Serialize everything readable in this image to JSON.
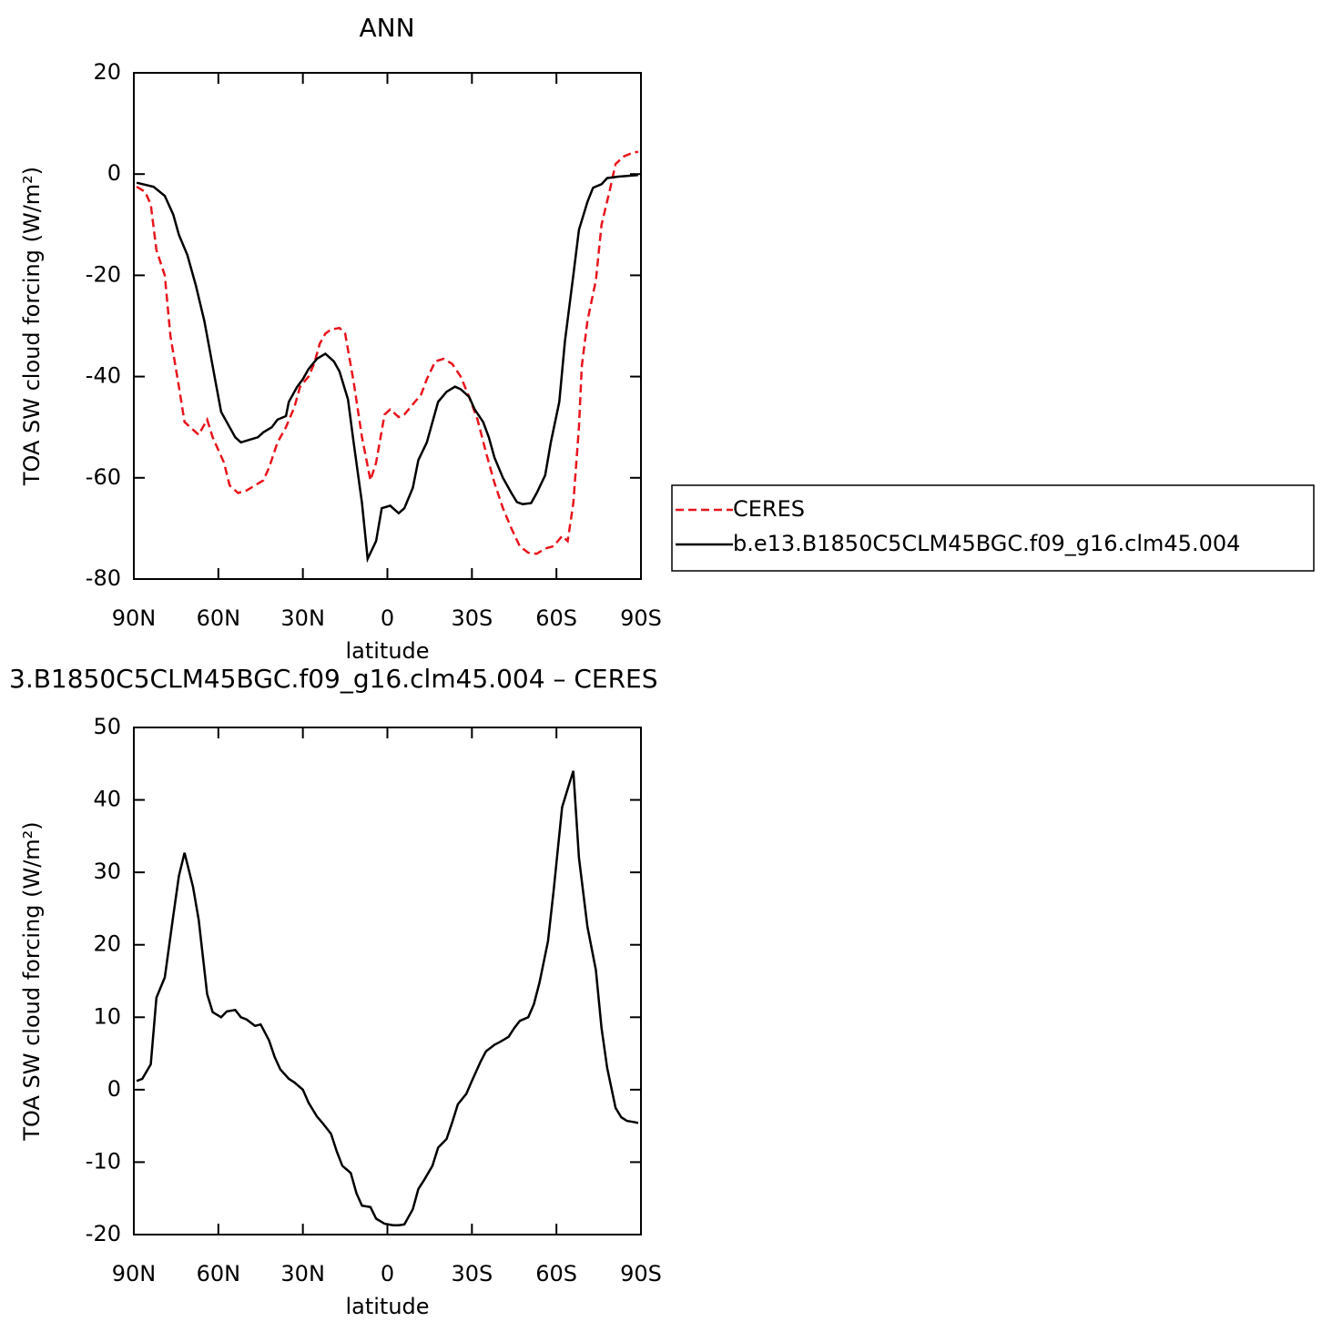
{
  "chart_data": [
    {
      "type": "line",
      "title": "ANN",
      "xlabel": "latitude",
      "ylabel": "TOA SW cloud forcing (W/m²)",
      "xlim": [
        90,
        -90
      ],
      "xticks": [
        {
          "value": 90,
          "label": "90N"
        },
        {
          "value": 60,
          "label": "60N"
        },
        {
          "value": 30,
          "label": "30N"
        },
        0,
        {
          "value": -30,
          "label": "30S"
        },
        {
          "value": -60,
          "label": "60S"
        },
        {
          "value": -90,
          "label": "90S"
        }
      ],
      "ylim": [
        -80,
        20
      ],
      "yticks": [
        20,
        0,
        -20,
        -40,
        -60,
        -80
      ],
      "legend": "right",
      "series": [
        {
          "name": "CERES",
          "color": "#e8141c",
          "dashed": true,
          "x": [
            89,
            86,
            84,
            82,
            79,
            77,
            74,
            72,
            70,
            67,
            64,
            62,
            58,
            56,
            53,
            50,
            47,
            44,
            42,
            39,
            36,
            33,
            31,
            28,
            26,
            24,
            22,
            20,
            17,
            15,
            12,
            9,
            6,
            4,
            1,
            -1,
            -4,
            -6,
            -9,
            -12,
            -14,
            -17,
            -20,
            -23,
            -26,
            -29,
            -32,
            -35,
            -38,
            -41,
            -44,
            -47,
            -50,
            -53,
            -56,
            -59,
            -62,
            -64,
            -66,
            -68,
            -69,
            -71,
            -74,
            -76,
            -79,
            -81,
            -84,
            -87,
            -89
          ],
          "values": [
            -2.5,
            -3.5,
            -6,
            -15,
            -20,
            -32,
            -42,
            -49,
            -50,
            -51.5,
            -48.5,
            -52,
            -57,
            -61.5,
            -63,
            -62.5,
            -61.5,
            -60.5,
            -58,
            -53,
            -50,
            -46,
            -42,
            -40,
            -37.5,
            -33.5,
            -31.5,
            -30.7,
            -30.4,
            -31.5,
            -41,
            -52,
            -60.5,
            -57,
            -47.5,
            -46.5,
            -48,
            -47.5,
            -45.5,
            -43.5,
            -40.5,
            -37,
            -36.5,
            -37.5,
            -40,
            -44,
            -48.5,
            -55,
            -61,
            -66,
            -70,
            -73.5,
            -74.8,
            -75,
            -74,
            -73.5,
            -71.5,
            -72.5,
            -65,
            -50,
            -38,
            -29,
            -21,
            -10,
            -3,
            2,
            3.5,
            4.2,
            4.4
          ]
        },
        {
          "name": "b.e13.B1850C5CLM45BGC.f09_g16.clm45.004",
          "color": "#000000",
          "dashed": false,
          "x": [
            89,
            83,
            79,
            76,
            74,
            71,
            68,
            65,
            63,
            61,
            59,
            56,
            54,
            52,
            49,
            46,
            44,
            41,
            39,
            36,
            35,
            32,
            30,
            28,
            25,
            22,
            19,
            17,
            14,
            12,
            9,
            7,
            4,
            2,
            -1,
            -4,
            -6,
            -9,
            -11,
            -14,
            -16,
            -18,
            -21,
            -24,
            -26,
            -29,
            -31,
            -34,
            -36,
            -38,
            -41,
            -44,
            -46,
            -48,
            -51,
            -53,
            -56,
            -58,
            -61,
            -63,
            -66,
            -68,
            -71,
            -73,
            -76,
            -78,
            -82,
            -89
          ],
          "values": [
            -1.7,
            -2.5,
            -4.3,
            -8,
            -12,
            -16,
            -22,
            -29,
            -35,
            -41,
            -47,
            -50,
            -52,
            -53,
            -52.5,
            -52,
            -51,
            -50,
            -48.5,
            -47.8,
            -45,
            -42,
            -40.5,
            -38.5,
            -36.5,
            -35.5,
            -37,
            -39,
            -44.5,
            -53,
            -65,
            -76,
            -72.5,
            -66,
            -65.5,
            -67,
            -66,
            -62,
            -56.5,
            -53,
            -49,
            -45,
            -43,
            -42,
            -42.5,
            -44,
            -46.5,
            -49,
            -52,
            -56,
            -60,
            -63,
            -64.8,
            -65.2,
            -65,
            -63,
            -59.5,
            -53,
            -45,
            -33,
            -20,
            -11,
            -5.5,
            -2.7,
            -2,
            -0.8,
            -0.5,
            -0.2
          ]
        }
      ]
    },
    {
      "type": "line",
      "title": "3.B1850C5CLM45BGC.f09_g16.clm45.004 – CERES",
      "xlabel": "latitude",
      "ylabel": "TOA SW cloud forcing (W/m²)",
      "xlim": [
        90,
        -90
      ],
      "xticks": [
        {
          "value": 90,
          "label": "90N"
        },
        {
          "value": 60,
          "label": "60N"
        },
        {
          "value": 30,
          "label": "30N"
        },
        0,
        {
          "value": -30,
          "label": "30S"
        },
        {
          "value": -60,
          "label": "60S"
        },
        {
          "value": -90,
          "label": "90S"
        }
      ],
      "ylim": [
        -20,
        50
      ],
      "yticks": [
        50,
        40,
        30,
        20,
        10,
        0,
        -10,
        -20
      ],
      "series": [
        {
          "color": "#000000",
          "dashed": false,
          "x": [
            89,
            87,
            84,
            82,
            79,
            76,
            74,
            72,
            69,
            67,
            64,
            62,
            59,
            57,
            54,
            52,
            50,
            47,
            45,
            42,
            40,
            38,
            35,
            33,
            30,
            28,
            25,
            23,
            20,
            18,
            16,
            13,
            11,
            9,
            6,
            4,
            1,
            -2,
            -4,
            -6,
            -9,
            -11,
            -13,
            -16,
            -18,
            -21,
            -23,
            -25,
            -28,
            -30,
            -33,
            -35,
            -38,
            -40,
            -43,
            -45,
            -47,
            -50,
            -52,
            -54,
            -57,
            -59,
            -62,
            -64,
            -66,
            -68,
            -71,
            -74,
            -76,
            -78,
            -81,
            -83,
            -85,
            -88,
            -89
          ],
          "values": [
            1.2,
            1.5,
            3.5,
            12.7,
            15.5,
            24,
            29.5,
            32.7,
            28,
            23.5,
            13.2,
            10.7,
            10,
            10.8,
            11,
            10,
            9.7,
            8.8,
            9,
            6.8,
            4.5,
            2.8,
            1.5,
            1,
            0,
            -1.8,
            -3.7,
            -4.6,
            -6.1,
            -8.5,
            -10.5,
            -11.5,
            -14.3,
            -16,
            -16.2,
            -17.8,
            -18.5,
            -18.7,
            -18.7,
            -18.6,
            -16.5,
            -13.7,
            -12.5,
            -10.5,
            -8,
            -6.8,
            -4.5,
            -2,
            -0.6,
            1.2,
            3.8,
            5.3,
            6.2,
            6.6,
            7.3,
            8.5,
            9.5,
            10,
            11.8,
            14.8,
            20.5,
            27.5,
            39,
            41.5,
            44,
            32,
            22.5,
            16.5,
            8.5,
            3,
            -2.5,
            -3.8,
            -4.3,
            -4.5,
            -4.6
          ]
        }
      ]
    }
  ]
}
